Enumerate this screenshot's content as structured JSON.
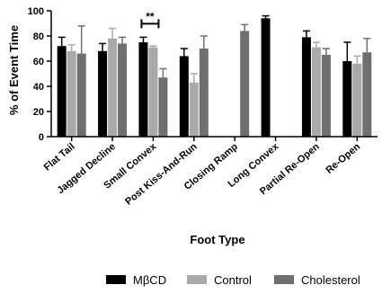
{
  "chart_data": {
    "type": "bar",
    "title": "",
    "xlabel": "Foot Type",
    "ylabel": "% of Event Time",
    "ylim": [
      0,
      100
    ],
    "yticks": [
      "0",
      "20",
      "40",
      "60",
      "80",
      "100"
    ],
    "categories": [
      "Flat Tail",
      "Jagged Decline",
      "Small Convex",
      "Post Kiss-And-Run",
      "Closing Ramp",
      "Long Convex",
      "Partial Re-Open",
      "Re-Open"
    ],
    "series": [
      {
        "name": "MβCD",
        "color": "#000000",
        "values": [
          72,
          68,
          75,
          64,
          null,
          94,
          79,
          60
        ],
        "errors": [
          7,
          6,
          4,
          6,
          null,
          2,
          5,
          15
        ]
      },
      {
        "name": "Control",
        "color": "#a9a9a9",
        "values": [
          68,
          78,
          71,
          43,
          null,
          null,
          71,
          58
        ],
        "errors": [
          5,
          8,
          1,
          7,
          null,
          null,
          4,
          6
        ]
      },
      {
        "name": "Cholesterol",
        "color": "#6f6f6f",
        "values": [
          66,
          74,
          47,
          70,
          84,
          null,
          65,
          67
        ],
        "errors": [
          22,
          5,
          7,
          10,
          5,
          null,
          5,
          11
        ]
      }
    ],
    "significance": {
      "label": "**",
      "category": "Small Convex",
      "between": [
        "MβCD",
        "Control"
      ]
    },
    "legend_position": "bottom",
    "grid": false
  }
}
